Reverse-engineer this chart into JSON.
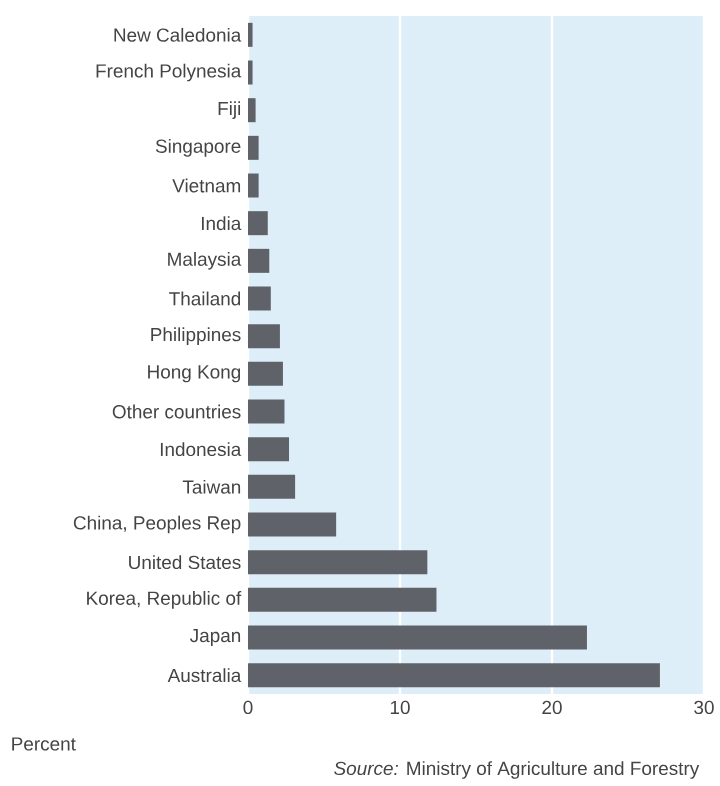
{
  "chart_data": {
    "type": "bar",
    "orientation": "horizontal",
    "xlabel": "Percent",
    "categories": [
      "New Caledonia",
      "French Polynesia",
      "Fiji",
      "Singapore",
      "Vietnam",
      "India",
      "Malaysia",
      "Thailand",
      "Philippines",
      "Hong Kong",
      "Other countries",
      "Indonesia",
      "Taiwan",
      "China, Peoples Rep",
      "United States",
      "Korea, Republic of",
      "Japan",
      "Australia"
    ],
    "values": [
      0.3,
      0.3,
      0.5,
      0.7,
      0.7,
      1.3,
      1.4,
      1.5,
      2.1,
      2.3,
      2.4,
      2.7,
      3.1,
      5.8,
      11.8,
      12.4,
      22.3,
      27.1
    ],
    "color": "#5f6268",
    "xlim": [
      0,
      30
    ],
    "xticks": [
      0,
      10,
      20,
      30
    ],
    "grid": "x",
    "legend": false,
    "annotations": [
      "*Source:* Ministry of Agriculture and Forestry"
    ]
  }
}
